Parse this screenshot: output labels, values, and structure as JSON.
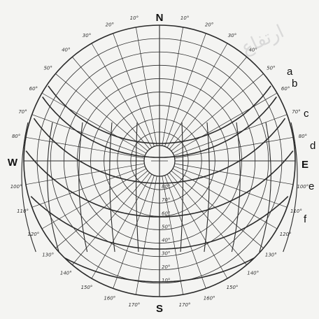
{
  "diagram": {
    "directions": {
      "north": "N",
      "south": "S",
      "east": "E",
      "west": "W"
    },
    "curve_labels": [
      "a",
      "b",
      "c",
      "d",
      "e",
      "f"
    ],
    "azimuth_labels": [
      "10°",
      "20°",
      "30°",
      "40°",
      "50°",
      "60°",
      "70°",
      "80°",
      "100°",
      "110°",
      "120°",
      "130°",
      "140°",
      "150°",
      "160°",
      "170°"
    ],
    "altitude_labels": [
      "10°",
      "20°",
      "30°",
      "40°",
      "50°",
      "60°",
      "70°",
      "80°"
    ],
    "handwritten_note": "ارتفاع",
    "colors": {
      "ink": "#2a2a2a",
      "paper": "#f4f4f2"
    }
  }
}
